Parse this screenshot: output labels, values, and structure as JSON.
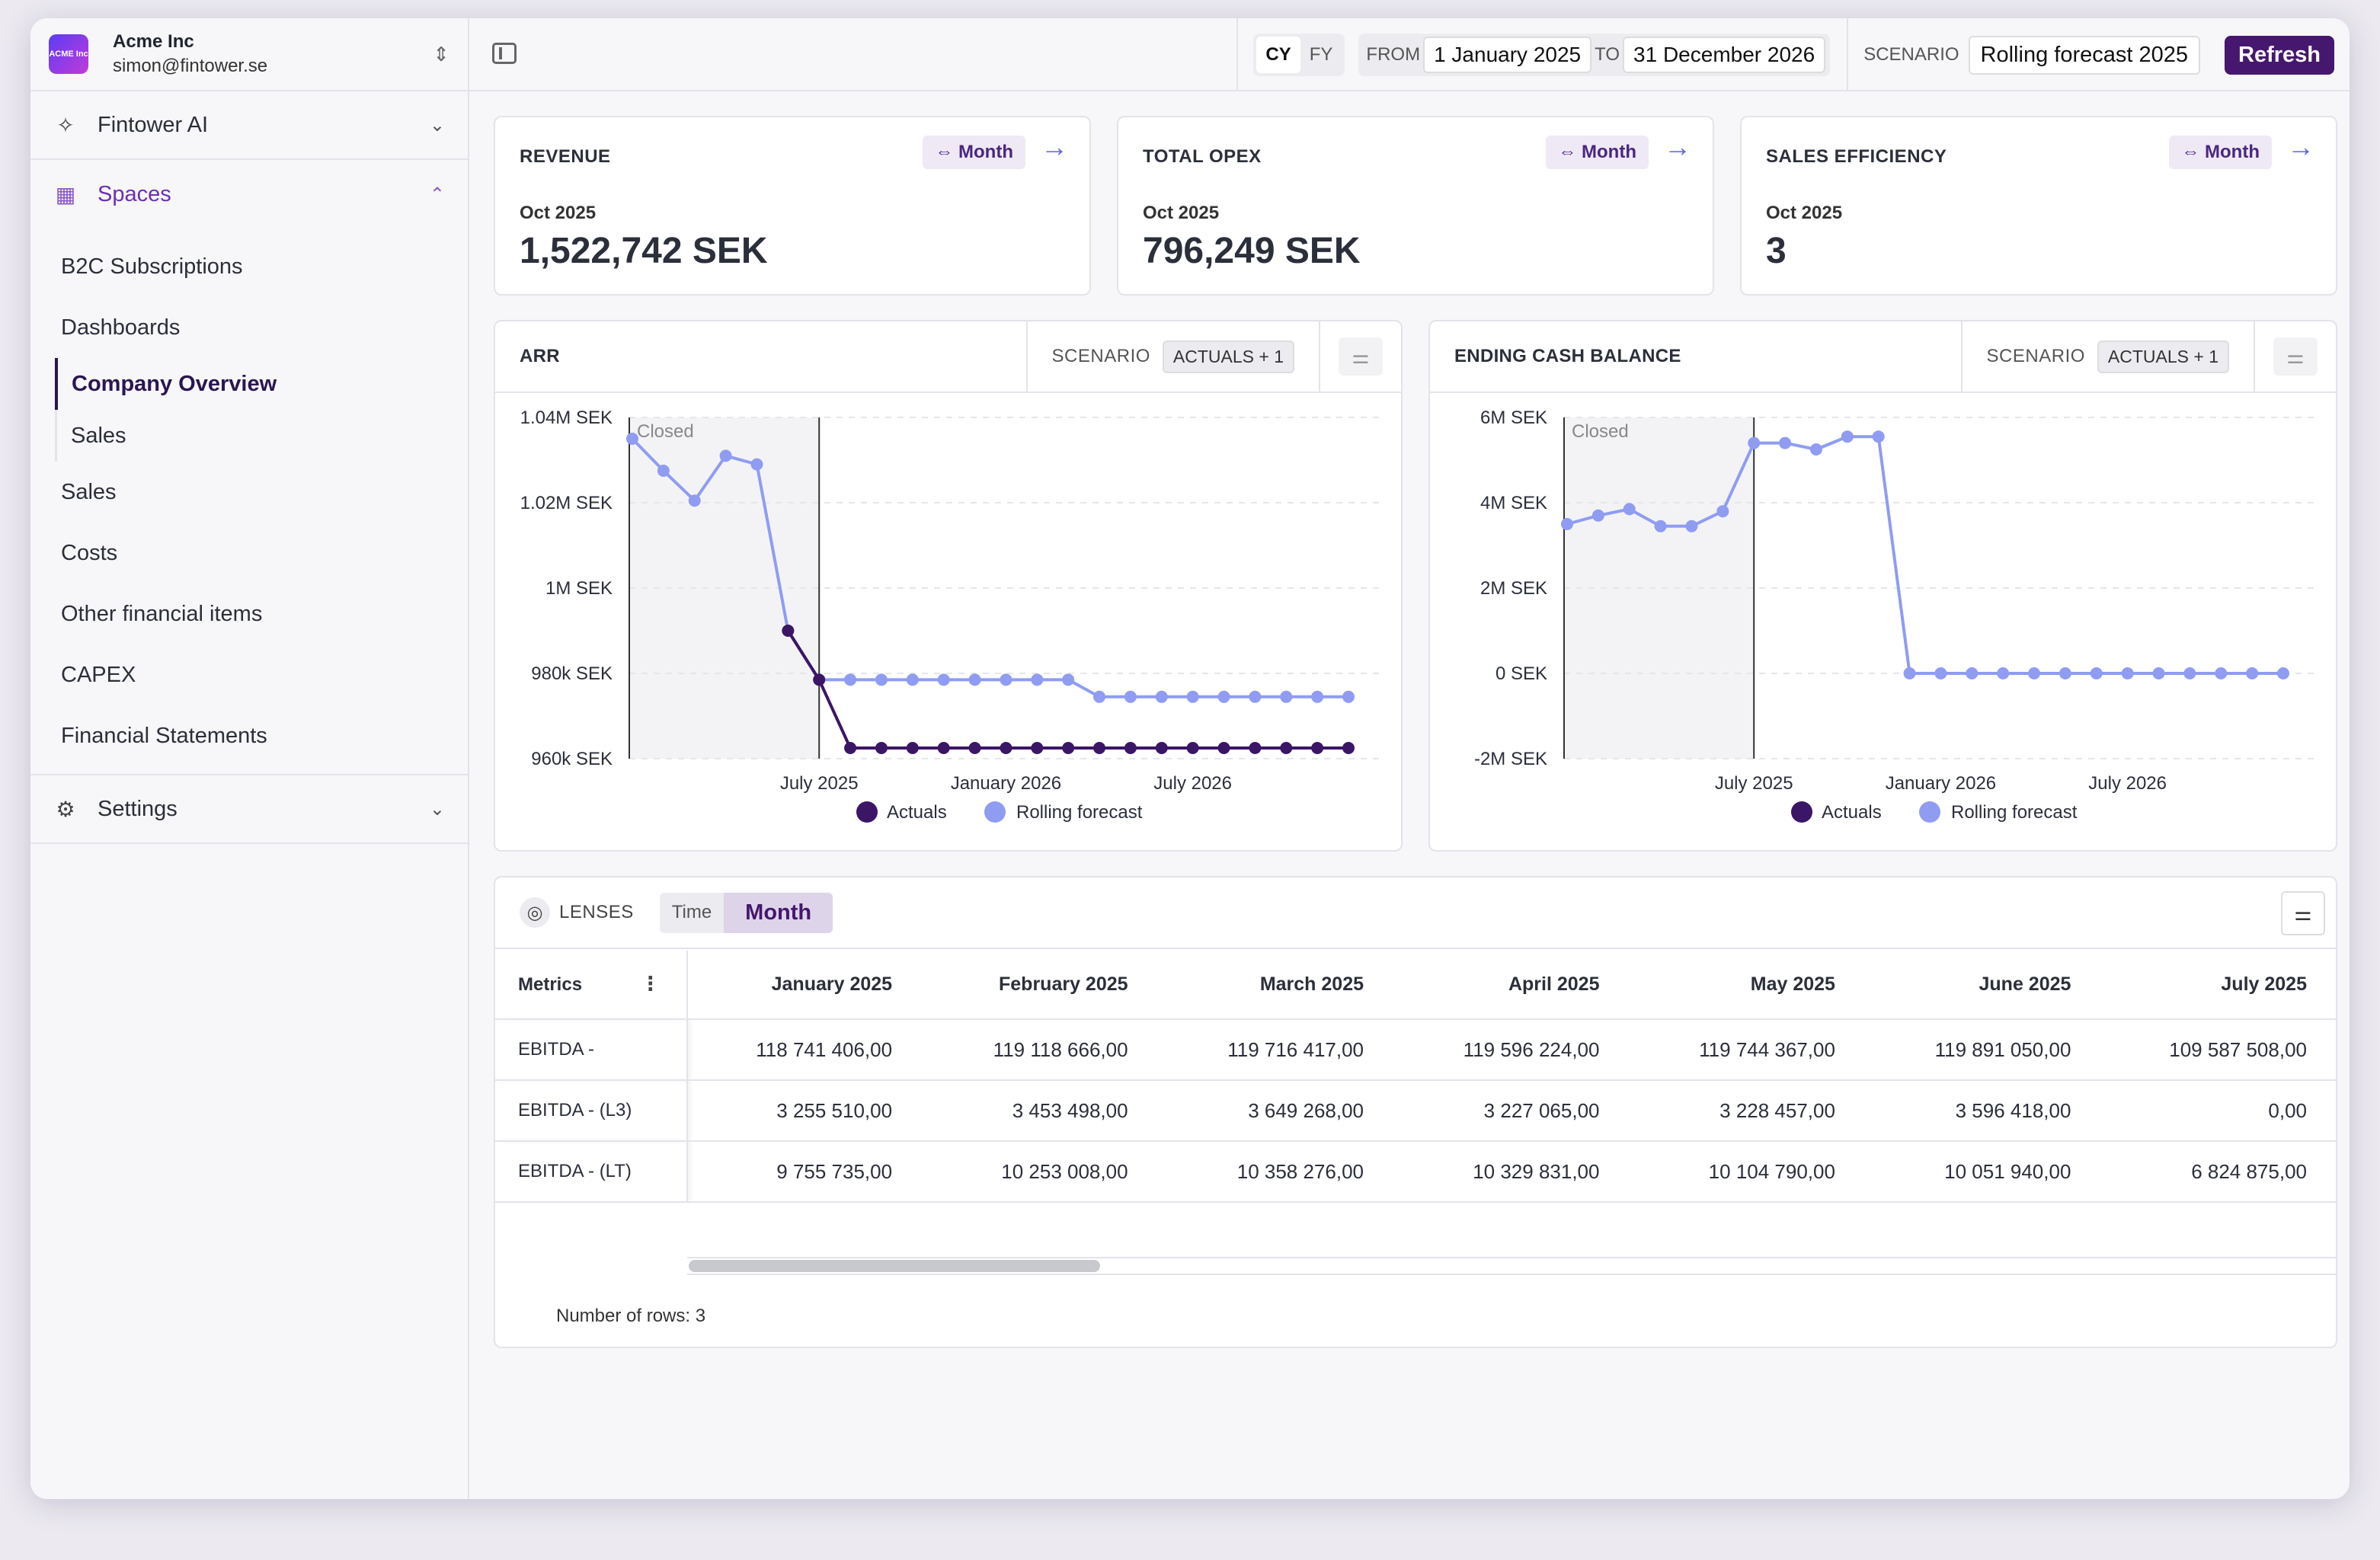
{
  "org": {
    "logo": "ACME Inc",
    "name": "Acme Inc",
    "email": "simon@fintower.se"
  },
  "sidebar": {
    "ai_label": "Fintower AI",
    "spaces_label": "Spaces",
    "items": [
      "B2C Subscriptions",
      "Dashboards"
    ],
    "dash_sub": [
      "Company Overview",
      "Sales"
    ],
    "items2": [
      "Sales",
      "Costs",
      "Other financial items",
      "CAPEX",
      "Financial Statements"
    ],
    "settings_label": "Settings"
  },
  "topbar": {
    "cy": "CY",
    "fy": "FY",
    "from_label": "FROM",
    "from_value": "1 January 2025",
    "to_label": "TO",
    "to_value": "31 December 2026",
    "scenario_label": "SCENARIO",
    "scenario_value": "Rolling forecast 2025",
    "refresh": "Refresh"
  },
  "kpis": [
    {
      "title": "REVENUE",
      "button": "Month",
      "period": "Oct 2025",
      "value": "1,522,742 SEK"
    },
    {
      "title": "TOTAL OPEX",
      "button": "Month",
      "period": "Oct 2025",
      "value": "796,249 SEK"
    },
    {
      "title": "SALES EFFICIENCY",
      "button": "Month",
      "period": "Oct 2025",
      "value": "3"
    }
  ],
  "charts_ui": [
    {
      "title": "ARR",
      "scenario_label": "SCENARIO",
      "scenario_value": "ACTUALS + 1"
    },
    {
      "title": "ENDING CASH BALANCE",
      "scenario_label": "SCENARIO",
      "scenario_value": "ACTUALS + 1"
    }
  ],
  "chart_data": [
    {
      "type": "line",
      "title": "ARR",
      "closed_label": "Closed",
      "y_ticks": [
        "1.04M SEK",
        "1.02M SEK",
        "1M SEK",
        "980k SEK",
        "960k SEK"
      ],
      "ylim": [
        960000,
        1040000
      ],
      "x_ticks": [
        "July 2025",
        "January 2026",
        "July 2026"
      ],
      "legend": [
        "Actuals",
        "Rolling forecast"
      ],
      "colors": {
        "actuals": "#3b1566",
        "forecast": "#8f9cf2"
      },
      "series": [
        {
          "name": "Rolling forecast",
          "start_index": 0,
          "values": [
            1035000,
            1027500,
            1020500,
            1031000,
            1029000,
            990000,
            978500,
            978500,
            978500,
            978500,
            978500,
            978500,
            978500,
            978500,
            978500,
            974500,
            974500,
            974500,
            974500,
            974500,
            974500,
            974500,
            974500,
            974500
          ]
        },
        {
          "name": "Actuals",
          "start_index": 5,
          "values": [
            990000,
            978500,
            962500,
            962500,
            962500,
            962500,
            962500,
            962500,
            962500,
            962500,
            962500,
            962500,
            962500,
            962500,
            962500,
            962500,
            962500,
            962500,
            962500
          ]
        }
      ]
    },
    {
      "type": "line",
      "title": "ENDING CASH BALANCE",
      "closed_label": "Closed",
      "y_ticks": [
        "6M SEK",
        "4M SEK",
        "2M SEK",
        "0 SEK",
        "-2M SEK"
      ],
      "ylim": [
        -2000000,
        6000000
      ],
      "x_ticks": [
        "July 2025",
        "January 2026",
        "July 2026"
      ],
      "legend": [
        "Actuals",
        "Rolling forecast"
      ],
      "colors": {
        "actuals": "#3b1566",
        "forecast": "#8f9cf2"
      },
      "series": [
        {
          "name": "Rolling forecast",
          "start_index": 0,
          "values": [
            3500000,
            3700000,
            3850000,
            3450000,
            3450000,
            3800000,
            5400000,
            5400000,
            5250000,
            5550000,
            5550000,
            0,
            0,
            0,
            0,
            0,
            0,
            0,
            0,
            0,
            0,
            0,
            0,
            0
          ]
        }
      ]
    }
  ],
  "table": {
    "lenses_label": "LENSES",
    "lens_time": "Time",
    "lens_month": "Month",
    "metrics_header": "Metrics",
    "columns": [
      "January 2025",
      "February 2025",
      "March 2025",
      "April 2025",
      "May 2025",
      "June 2025",
      "July 2025"
    ],
    "rows": [
      {
        "metric": "EBITDA -",
        "values": [
          "118 741 406,00",
          "119 118 666,00",
          "119 716 417,00",
          "119 596 224,00",
          "119 744 367,00",
          "119 891 050,00",
          "109 587 508,00"
        ]
      },
      {
        "metric": "EBITDA - (L3)",
        "values": [
          "3 255 510,00",
          "3 453 498,00",
          "3 649 268,00",
          "3 227 065,00",
          "3 228 457,00",
          "3 596 418,00",
          "0,00"
        ]
      },
      {
        "metric": "EBITDA - (LT)",
        "values": [
          "9 755 735,00",
          "10 253 008,00",
          "10 358 276,00",
          "10 329 831,00",
          "10 104 790,00",
          "10 051 940,00",
          "6 824 875,00"
        ]
      }
    ],
    "row_count": "Number of rows: 3"
  }
}
